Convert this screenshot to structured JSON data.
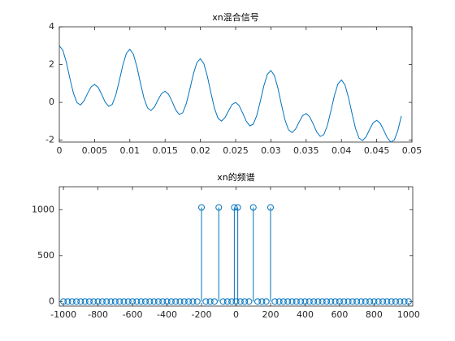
{
  "chart_data": [
    {
      "type": "line",
      "title": "xn混合信号",
      "color": "#0072bd",
      "x": [
        0,
        0.0005,
        0.001,
        0.0015,
        0.002,
        0.0025,
        0.003,
        0.0035,
        0.004,
        0.0045,
        0.005,
        0.0055,
        0.006,
        0.0065,
        0.007,
        0.0075,
        0.008,
        0.0085,
        0.009,
        0.0095,
        0.01,
        0.0105,
        0.011,
        0.0115,
        0.012,
        0.0125,
        0.013,
        0.0135,
        0.014,
        0.0145,
        0.015,
        0.0155,
        0.016,
        0.0165,
        0.017,
        0.0175,
        0.018,
        0.0185,
        0.019,
        0.0195,
        0.02,
        0.0205,
        0.021,
        0.0215,
        0.022,
        0.0225,
        0.023,
        0.0235,
        0.024,
        0.0245,
        0.025,
        0.0255,
        0.026,
        0.0265,
        0.027,
        0.0275,
        0.028,
        0.0285,
        0.029,
        0.0295,
        0.03,
        0.0305,
        0.031,
        0.0315,
        0.032,
        0.0325,
        0.033,
        0.0335,
        0.034,
        0.0345,
        0.035,
        0.0355,
        0.036,
        0.0365,
        0.037,
        0.0375,
        0.038,
        0.0385,
        0.039,
        0.0395,
        0.04,
        0.0405,
        0.041,
        0.0415,
        0.042,
        0.0425,
        0.043,
        0.0435,
        0.044,
        0.0445,
        0.045,
        0.0455,
        0.046,
        0.0465,
        0.047,
        0.0475,
        0.048,
        0.0485
      ],
      "values": [
        3,
        2.76,
        2.12,
        1.27,
        0.49,
        -0.01,
        -0.14,
        0.08,
        0.47,
        0.82,
        0.95,
        0.8,
        0.43,
        0.02,
        -0.21,
        -0.11,
        0.38,
        1.14,
        1.96,
        2.59,
        2.81,
        2.55,
        1.89,
        1.03,
        0.23,
        -0.29,
        -0.43,
        -0.24,
        0.14,
        0.47,
        0.59,
        0.42,
        0.04,
        -0.39,
        -0.64,
        -0.55,
        -0.07,
        0.68,
        1.49,
        2.1,
        2.31,
        2.04,
        1.37,
        0.5,
        -0.31,
        -0.84,
        -0.99,
        -0.8,
        -0.44,
        -0.11,
        0,
        -0.17,
        -0.56,
        -0.99,
        -1.24,
        -1.16,
        -0.69,
        0.06,
        0.87,
        1.48,
        1.69,
        1.42,
        0.75,
        -0.12,
        -0.93,
        -1.45,
        -1.6,
        -1.41,
        -1.04,
        -0.7,
        -0.59,
        -0.76,
        -1.14,
        -1.56,
        -1.8,
        -1.71,
        -1.23,
        -0.47,
        0.35,
        0.97,
        1.19,
        0.93,
        0.27,
        -0.58,
        -1.38,
        -1.89,
        -2.02,
        -1.82,
        -1.43,
        -1.08,
        -0.95,
        -1.1,
        -1.47,
        -1.87,
        -2.1,
        -1.99,
        -1.49,
        -0.72
      ],
      "xlim": [
        0,
        0.05
      ],
      "ylim": [
        -2.1,
        4
      ],
      "xticks": [
        0,
        0.005,
        0.01,
        0.015,
        0.02,
        0.025,
        0.03,
        0.035,
        0.04,
        0.045,
        0.05
      ],
      "yticks": [
        -2,
        0,
        2,
        4
      ]
    },
    {
      "type": "stem",
      "title": "xn的频谱",
      "color": "#0072bd",
      "x": [
        -1000,
        -975,
        -950,
        -925,
        -900,
        -875,
        -850,
        -825,
        -800,
        -775,
        -750,
        -725,
        -700,
        -675,
        -650,
        -625,
        -600,
        -575,
        -550,
        -525,
        -500,
        -475,
        -450,
        -425,
        -400,
        -375,
        -350,
        -325,
        -300,
        -275,
        -250,
        -225,
        -200,
        -175,
        -150,
        -125,
        -100,
        -75,
        -50,
        -25,
        -10,
        0,
        10,
        25,
        50,
        75,
        100,
        125,
        150,
        175,
        200,
        225,
        250,
        275,
        300,
        325,
        350,
        375,
        400,
        425,
        450,
        475,
        500,
        525,
        550,
        575,
        600,
        625,
        650,
        675,
        700,
        725,
        750,
        775,
        800,
        825,
        850,
        875,
        900,
        925,
        950,
        975,
        1000
      ],
      "values": [
        0,
        0,
        0,
        0,
        0,
        0,
        0,
        0,
        0,
        0,
        0,
        0,
        0,
        0,
        0,
        0,
        0,
        0,
        0,
        0,
        0,
        0,
        0,
        0,
        0,
        0,
        0,
        0,
        0,
        0,
        0,
        0,
        1024,
        0,
        0,
        0,
        1024,
        0,
        0,
        0,
        1024,
        0,
        1024,
        0,
        0,
        0,
        1024,
        0,
        0,
        0,
        1024,
        0,
        0,
        0,
        0,
        0,
        0,
        0,
        0,
        0,
        0,
        0,
        0,
        0,
        0,
        0,
        0,
        0,
        0,
        0,
        0,
        0,
        0,
        0,
        0,
        0,
        0,
        0,
        0,
        0,
        0,
        0,
        0
      ],
      "xlim": [
        -1024,
        1024
      ],
      "ylim": [
        -50,
        1250
      ],
      "xticks": [
        -1000,
        -800,
        -600,
        -400,
        -200,
        0,
        200,
        400,
        600,
        800,
        1000
      ],
      "yticks": [
        0,
        500,
        1000
      ]
    }
  ]
}
